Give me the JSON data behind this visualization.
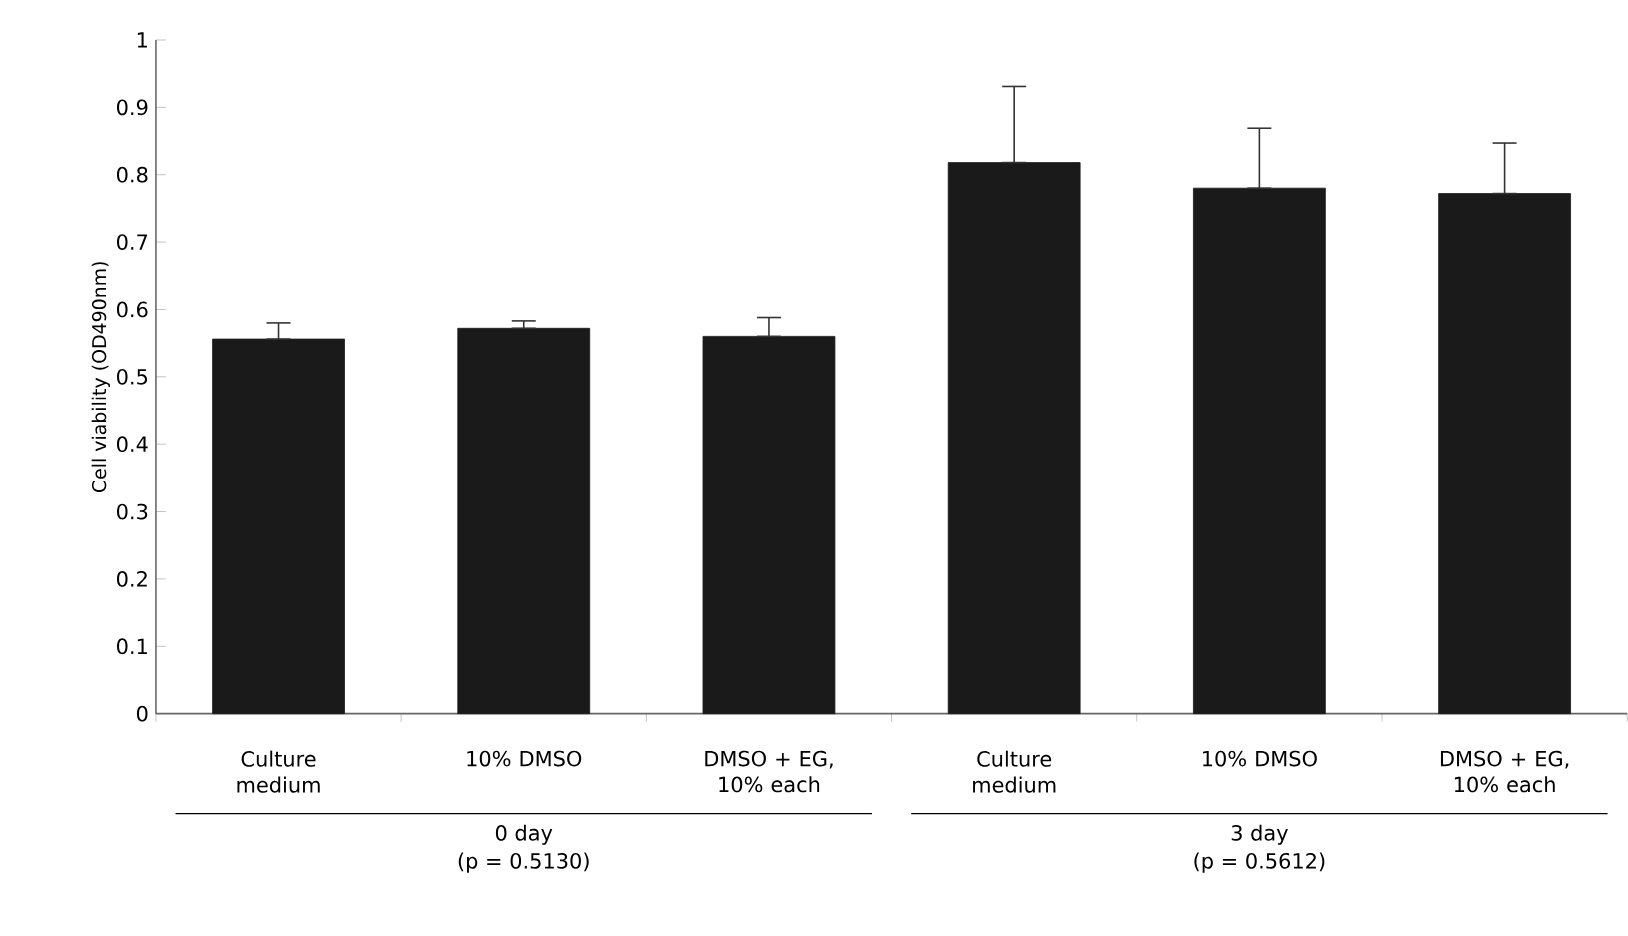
{
  "chart_data": {
    "type": "bar",
    "ylabel": "Cell viability (OD490nm)",
    "categories": [
      "Culture medium",
      "10% DMSO",
      "DMSO + EG, 10% each",
      "Culture medium",
      "10% DMSO",
      "DMSO + EG, 10% each"
    ],
    "values": [
      0.556,
      0.572,
      0.56,
      0.818,
      0.78,
      0.772
    ],
    "errors": [
      [
        0.556,
        0.58
      ],
      [
        0.572,
        0.583
      ],
      [
        0.56,
        0.588
      ],
      [
        0.818,
        0.931
      ],
      [
        0.78,
        0.869
      ],
      [
        0.772,
        0.847
      ]
    ],
    "color": "#1a1a1a",
    "ylim": [
      0,
      1
    ],
    "yticks": [
      0,
      0.1,
      0.2,
      0.3,
      0.4,
      0.5,
      0.6,
      0.7,
      0.8,
      0.9,
      1
    ],
    "annotations": [
      "0 day",
      "(p = 0.5130)",
      "3 day",
      "(p = 0.5612)"
    ],
    "grid": false
  }
}
